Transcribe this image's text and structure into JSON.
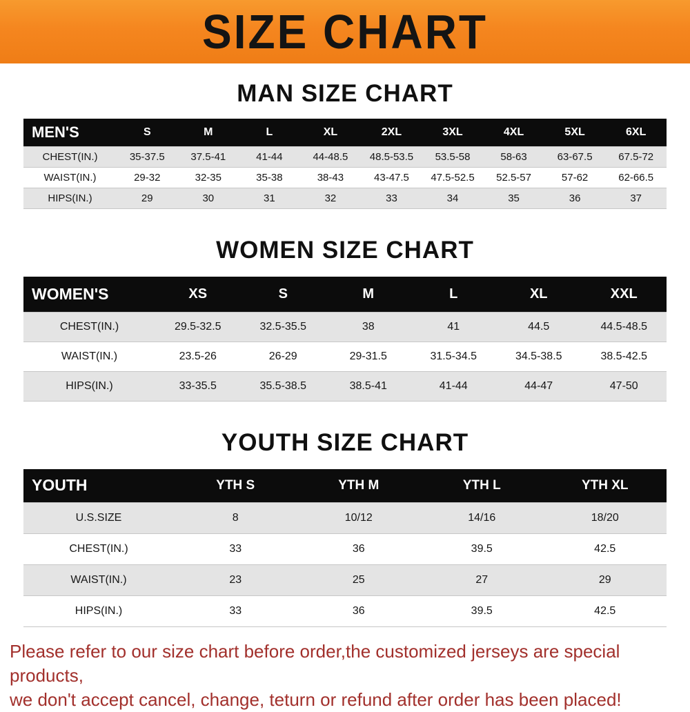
{
  "banner": {
    "title": "SIZE CHART",
    "bg_color": "#f5861f",
    "text_color": "#141414"
  },
  "sections": [
    {
      "heading": "MAN SIZE CHART",
      "table": {
        "title": "MEN'S",
        "columns": [
          "S",
          "M",
          "L",
          "XL",
          "2XL",
          "3XL",
          "4XL",
          "5XL",
          "6XL"
        ],
        "rows": [
          {
            "label": "CHEST(IN.)",
            "values": [
              "35-37.5",
              "37.5-41",
              "41-44",
              "44-48.5",
              "48.5-53.5",
              "53.5-58",
              "58-63",
              "63-67.5",
              "67.5-72"
            ]
          },
          {
            "label": "WAIST(IN.)",
            "values": [
              "29-32",
              "32-35",
              "35-38",
              "38-43",
              "43-47.5",
              "47.5-52.5",
              "52.5-57",
              "57-62",
              "62-66.5"
            ]
          },
          {
            "label": "HIPS(IN.)",
            "values": [
              "29",
              "30",
              "31",
              "32",
              "33",
              "34",
              "35",
              "36",
              "37"
            ]
          }
        ]
      }
    },
    {
      "heading": "WOMEN SIZE CHART",
      "table": {
        "title": "WOMEN'S",
        "columns": [
          "XS",
          "S",
          "M",
          "L",
          "XL",
          "XXL"
        ],
        "rows": [
          {
            "label": "CHEST(IN.)",
            "values": [
              "29.5-32.5",
              "32.5-35.5",
              "38",
              "41",
              "44.5",
              "44.5-48.5"
            ]
          },
          {
            "label": "WAIST(IN.)",
            "values": [
              "23.5-26",
              "26-29",
              "29-31.5",
              "31.5-34.5",
              "34.5-38.5",
              "38.5-42.5"
            ]
          },
          {
            "label": "HIPS(IN.)",
            "values": [
              "33-35.5",
              "35.5-38.5",
              "38.5-41",
              "41-44",
              "44-47",
              "47-50"
            ]
          }
        ]
      }
    },
    {
      "heading": "YOUTH SIZE CHART",
      "table": {
        "title": "YOUTH",
        "columns": [
          "YTH S",
          "YTH M",
          "YTH L",
          "YTH XL"
        ],
        "rows": [
          {
            "label": "U.S.SIZE",
            "values": [
              "8",
              "10/12",
              "14/16",
              "18/20"
            ]
          },
          {
            "label": "CHEST(IN.)",
            "values": [
              "33",
              "36",
              "39.5",
              "42.5"
            ]
          },
          {
            "label": "WAIST(IN.)",
            "values": [
              "23",
              "25",
              "27",
              "29"
            ]
          },
          {
            "label": "HIPS(IN.)",
            "values": [
              "33",
              "36",
              "39.5",
              "42.5"
            ]
          }
        ]
      }
    }
  ],
  "footer": {
    "line1": "Please refer to our size chart before order,the customized jerseys are special products,",
    "line2": "we don't accept cancel, change, teturn or refund after order has been placed!",
    "text_color": "#a2302c"
  }
}
